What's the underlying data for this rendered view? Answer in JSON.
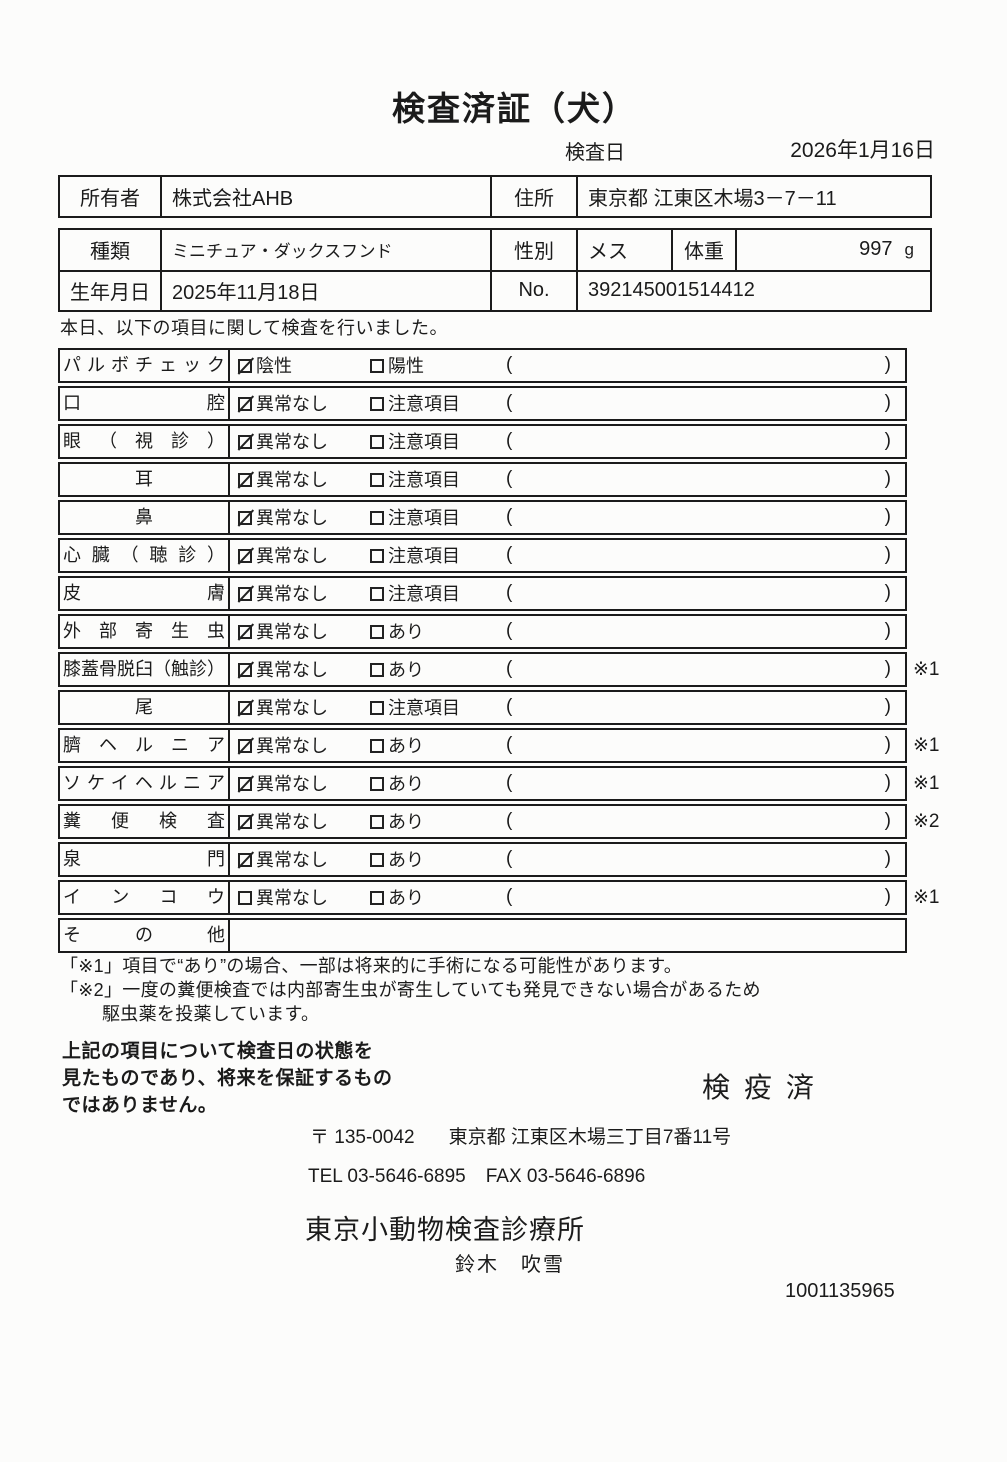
{
  "page": {
    "title": "検査済証（犬）",
    "inspection_date_label": "検査日",
    "inspection_date": "2026年1月16日"
  },
  "info": {
    "owner_label": "所有者",
    "owner": "株式会社AHB",
    "address_label": "住所",
    "address": "東京都 江東区木場3－7－11",
    "breed_label": "種類",
    "breed": "ミニチュア・ダックスフンド",
    "sex_label": "性別",
    "sex": "メス",
    "weight_label": "体重",
    "weight": "997",
    "weight_unit": "g",
    "birthdate_label": "生年月日",
    "birthdate": "2025年11月18日",
    "no_label": "No.",
    "no_value": "392145001514412"
  },
  "intro": "本日、以下の項目に関して検査を行いました。",
  "checklist": {
    "paren_open": "(",
    "paren_close": ")",
    "rows": [
      {
        "label": "パルボチェック",
        "align": "justify",
        "opt1": "陰性",
        "checked1": true,
        "opt2": "陽性",
        "checked2": false,
        "paren": true,
        "note": ""
      },
      {
        "label": "口腔",
        "align": "justify",
        "opt1": "異常なし",
        "checked1": true,
        "opt2": "注意項目",
        "checked2": false,
        "paren": true,
        "note": ""
      },
      {
        "label": "眼（視診）",
        "align": "justify",
        "opt1": "異常なし",
        "checked1": true,
        "opt2": "注意項目",
        "checked2": false,
        "paren": true,
        "note": ""
      },
      {
        "label": "耳",
        "align": "center",
        "opt1": "異常なし",
        "checked1": true,
        "opt2": "注意項目",
        "checked2": false,
        "paren": true,
        "note": ""
      },
      {
        "label": "鼻",
        "align": "center",
        "opt1": "異常なし",
        "checked1": true,
        "opt2": "注意項目",
        "checked2": false,
        "paren": true,
        "note": ""
      },
      {
        "label": "心臓（聴診）",
        "align": "justify",
        "opt1": "異常なし",
        "checked1": true,
        "opt2": "注意項目",
        "checked2": false,
        "paren": true,
        "note": ""
      },
      {
        "label": "皮膚",
        "align": "justify",
        "opt1": "異常なし",
        "checked1": true,
        "opt2": "注意項目",
        "checked2": false,
        "paren": true,
        "note": ""
      },
      {
        "label": "外部寄生虫",
        "align": "justify",
        "opt1": "異常なし",
        "checked1": true,
        "opt2": "あり",
        "checked2": false,
        "paren": true,
        "note": ""
      },
      {
        "label": "膝蓋骨脱臼（触診）",
        "align": "justify",
        "opt1": "異常なし",
        "checked1": true,
        "opt2": "あり",
        "checked2": false,
        "paren": true,
        "note": "※1"
      },
      {
        "label": "尾",
        "align": "center",
        "opt1": "異常なし",
        "checked1": true,
        "opt2": "注意項目",
        "checked2": false,
        "paren": true,
        "note": ""
      },
      {
        "label": "臍ヘルニア",
        "align": "justify",
        "opt1": "異常なし",
        "checked1": true,
        "opt2": "あり",
        "checked2": false,
        "paren": true,
        "note": "※1"
      },
      {
        "label": "ソケイヘルニア",
        "align": "justify",
        "opt1": "異常なし",
        "checked1": true,
        "opt2": "あり",
        "checked2": false,
        "paren": true,
        "note": "※1"
      },
      {
        "label": "糞便検査",
        "align": "justify",
        "opt1": "異常なし",
        "checked1": true,
        "opt2": "あり",
        "checked2": false,
        "paren": true,
        "note": "※2"
      },
      {
        "label": "泉門",
        "align": "justify",
        "opt1": "異常なし",
        "checked1": true,
        "opt2": "あり",
        "checked2": false,
        "paren": true,
        "note": ""
      },
      {
        "label": "インコウ",
        "align": "justify",
        "opt1": "異常なし",
        "checked1": false,
        "opt2": "あり",
        "checked2": false,
        "paren": true,
        "note": "※1"
      },
      {
        "label": "その他",
        "align": "justify",
        "opt1": null,
        "checked1": false,
        "opt2": null,
        "checked2": false,
        "paren": false,
        "note": ""
      }
    ]
  },
  "footnotes": {
    "line1": "「※1」項目で“あり”の場合、一部は将来的に手術になる可能性があります。",
    "line2": "「※2」一度の糞便検査では内部寄生虫が寄生していても発見できない場合があるため",
    "line3": "駆虫薬を投薬しています。"
  },
  "disclaimer": {
    "line1": "上記の項目について検査日の状態を",
    "line2": "見たものであり、将来を保証するもの",
    "line3": "ではありません。"
  },
  "quarantine_stamp": "検疫済",
  "clinic": {
    "postal": "〒 135-0042",
    "address": "東京都 江東区木場三丁目7番11号",
    "tel": "TEL 03-5646-6895",
    "fax": "FAX 03-5646-6896",
    "name": "東京小動物検査診療所",
    "veterinarian": "鈴木　吹雪",
    "code": "1001135965"
  }
}
